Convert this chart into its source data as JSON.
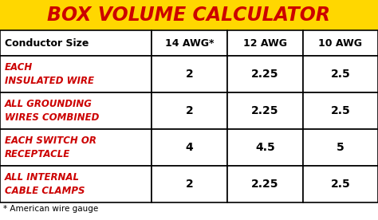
{
  "title": "BOX VOLUME CALCULATOR",
  "title_bg": "#FFD700",
  "title_color": "#CC0000",
  "title_fontsize": 17,
  "col_headers": [
    "Conductor Size",
    "14 AWG*",
    "12 AWG",
    "10 AWG"
  ],
  "col_header_fontsize": 9,
  "rows": [
    {
      "label": "EACH\nINSULATED WIRE",
      "values": [
        "2",
        "2.25",
        "2.5"
      ]
    },
    {
      "label": "ALL GROUNDING\nWIRES COMBINED",
      "values": [
        "2",
        "2.25",
        "2.5"
      ]
    },
    {
      "label": "EACH SWITCH OR\nRECEPTACLE",
      "values": [
        "4",
        "4.5",
        "5"
      ]
    },
    {
      "label": "ALL INTERNAL\nCABLE CLAMPS",
      "values": [
        "2",
        "2.25",
        "2.5"
      ]
    }
  ],
  "footnote": "* American wire gauge",
  "label_color": "#CC0000",
  "value_color": "#000000",
  "header_color": "#000000",
  "bg_color": "#FFFFFF",
  "border_color": "#000000",
  "label_fontsize": 8.5,
  "value_fontsize": 10,
  "footnote_fontsize": 7.5
}
